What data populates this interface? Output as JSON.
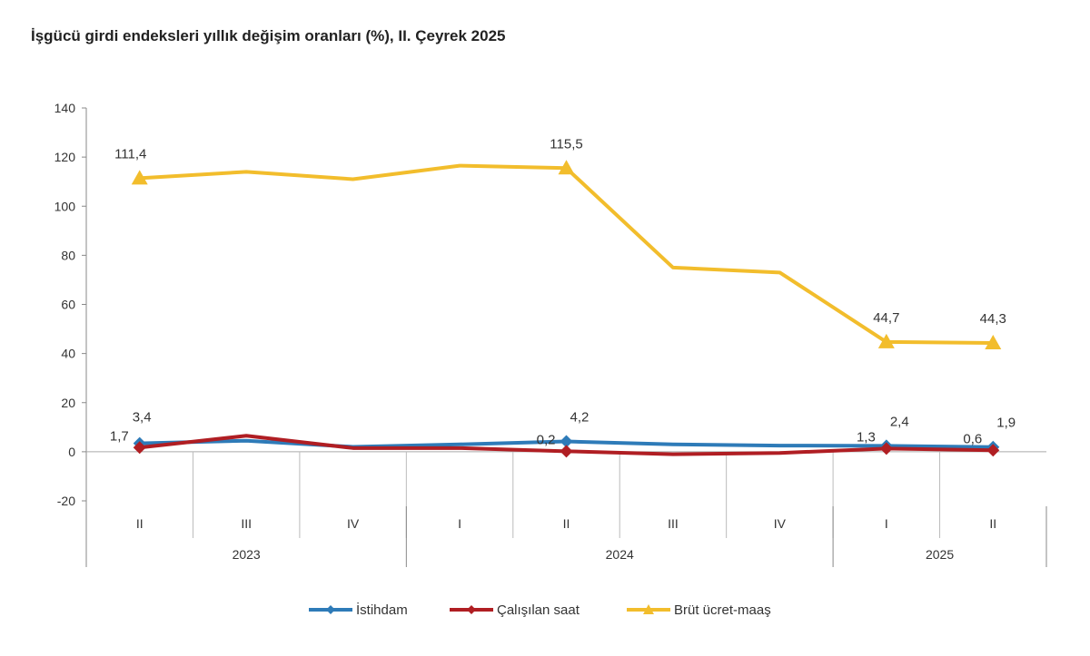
{
  "chart_data": {
    "type": "line",
    "title": "İşgücü girdi endeksleri yıllık değişim oranları (%), II. Çeyrek 2025",
    "categories": [
      "II",
      "III",
      "IV",
      "I",
      "II",
      "III",
      "IV",
      "I",
      "II"
    ],
    "years": [
      {
        "label": "2023",
        "span": 3
      },
      {
        "label": "2024",
        "span": 4
      },
      {
        "label": "2025",
        "span": 2
      }
    ],
    "ylim": [
      -20,
      140
    ],
    "yticks": [
      -20,
      0,
      20,
      40,
      60,
      80,
      100,
      120,
      140
    ],
    "grid": false,
    "legend": "bottom",
    "series": [
      {
        "name": "İstihdam",
        "color": "#2e7bb8",
        "marker": "diamond",
        "values": [
          3.4,
          4.5,
          2.0,
          3.0,
          4.2,
          3.0,
          2.5,
          2.4,
          1.9
        ],
        "labels": {
          "0": "3,4",
          "4": "4,2",
          "7": "2,4",
          "8": "1,9"
        }
      },
      {
        "name": "Çalışılan saat",
        "color": "#b01e23",
        "marker": "diamond",
        "values": [
          1.7,
          6.5,
          1.5,
          1.5,
          0.2,
          -1.0,
          -0.5,
          1.3,
          0.6
        ],
        "labels": {
          "0": "1,7",
          "4": "0,2",
          "7": "1,3",
          "8": "0,6"
        }
      },
      {
        "name": "Brüt ücret-maaş",
        "color": "#f2bd2c",
        "marker": "triangle",
        "values": [
          111.4,
          114.0,
          111.0,
          116.5,
          115.5,
          75.0,
          73.0,
          44.7,
          44.3
        ],
        "labels": {
          "0": "111,4",
          "4": "115,5",
          "7": "44,7",
          "8": "44,3"
        }
      }
    ]
  }
}
